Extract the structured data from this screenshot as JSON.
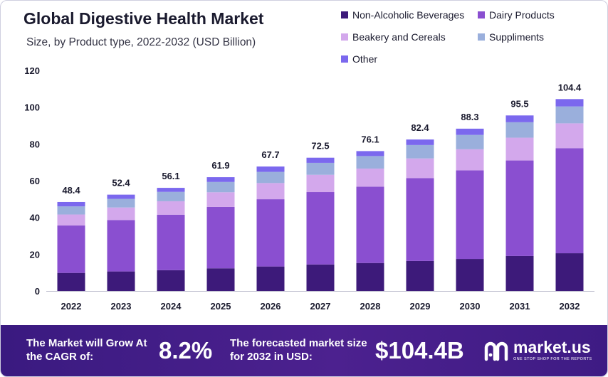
{
  "header": {
    "title": "Global Digestive Health Market",
    "subtitle": "Size, by Product type, 2022-2032 (USD Billion)"
  },
  "legend": [
    {
      "label": "Non-Alcoholic Beverages",
      "color": "#3d1a7a"
    },
    {
      "label": "Dairy Products",
      "color": "#8a4fd0"
    },
    {
      "label": "Beakery and Cereals",
      "color": "#d3a8ec"
    },
    {
      "label": "Suppliments",
      "color": "#9aafdc"
    },
    {
      "label": "Other",
      "color": "#7b68ee"
    }
  ],
  "chart_data": {
    "type": "bar",
    "stacked": true,
    "categories": [
      "2022",
      "2023",
      "2024",
      "2025",
      "2026",
      "2027",
      "2028",
      "2029",
      "2030",
      "2031",
      "2032"
    ],
    "series": [
      {
        "name": "Non-Alcoholic Beverages",
        "color": "#3d1a7a",
        "values": [
          9.8,
          10.6,
          11.3,
          12.3,
          13.3,
          14.4,
          15.2,
          16.3,
          17.4,
          19.0,
          20.5
        ]
      },
      {
        "name": "Dairy Products",
        "color": "#8a4fd0",
        "values": [
          25.8,
          28.0,
          30.2,
          33.4,
          36.6,
          39.4,
          41.5,
          45.1,
          48.2,
          52.0,
          57.2
        ]
      },
      {
        "name": "Beakery and Cereals",
        "color": "#d3a8ec",
        "values": [
          6.0,
          6.8,
          7.3,
          8.0,
          8.8,
          9.4,
          9.9,
          10.7,
          11.5,
          12.4,
          13.5
        ]
      },
      {
        "name": "Suppliments",
        "color": "#9aafdc",
        "values": [
          4.4,
          4.7,
          5.1,
          5.6,
          6.1,
          6.5,
          6.8,
          7.3,
          7.8,
          8.4,
          9.2
        ]
      },
      {
        "name": "Other",
        "color": "#7b68ee",
        "values": [
          2.4,
          2.3,
          2.2,
          2.6,
          2.9,
          2.8,
          2.7,
          3.0,
          3.4,
          3.7,
          4.0
        ]
      }
    ],
    "totals": [
      48.4,
      52.4,
      56.1,
      61.9,
      67.7,
      72.5,
      76.1,
      82.4,
      88.3,
      95.5,
      104.4
    ],
    "total_labels": [
      "48.4",
      "52.4",
      "56.1",
      "61.9",
      "67.7",
      "72.5",
      "76.1",
      "82.4",
      "88.3",
      "95.5",
      "104.4"
    ],
    "yticks": [
      0,
      20,
      40,
      60,
      80,
      100,
      120
    ],
    "ylim": [
      0,
      120
    ],
    "grid": false,
    "legend_position": "top-right"
  },
  "footer": {
    "cagr_text": "The Market will Grow At the CAGR of:",
    "cagr_value": "8.2%",
    "forecast_text": "The forecasted market size for 2032 in USD:",
    "forecast_value": "$104.4B",
    "brand_name": "market.us",
    "brand_tagline": "ONE STOP SHOP FOR THE REPORTS",
    "brand_icon": "market-us-logo-icon"
  }
}
